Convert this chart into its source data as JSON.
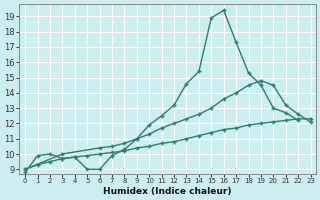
{
  "title": "",
  "xlabel": "Humidex (Indice chaleur)",
  "bg_color": "#cceef0",
  "grid_color": "#ffffff",
  "line_color": "#2e7d6e",
  "xlim": [
    -0.5,
    23.4
  ],
  "ylim": [
    8.7,
    19.8
  ],
  "xticks": [
    0,
    1,
    2,
    3,
    4,
    5,
    6,
    7,
    8,
    9,
    10,
    11,
    12,
    13,
    14,
    15,
    16,
    17,
    18,
    19,
    20,
    21,
    22,
    23
  ],
  "yticks": [
    9,
    10,
    11,
    12,
    13,
    14,
    15,
    16,
    17,
    18,
    19
  ],
  "curve1_x": [
    0,
    1,
    2,
    3,
    4,
    5,
    6,
    7,
    8,
    9,
    10,
    11,
    12,
    13,
    14,
    15,
    16,
    17,
    18,
    19,
    20,
    21,
    22
  ],
  "curve1_y": [
    8.8,
    9.9,
    10.0,
    9.7,
    9.8,
    9.0,
    9.0,
    9.9,
    10.3,
    11.0,
    11.9,
    12.5,
    13.2,
    14.6,
    15.4,
    18.9,
    19.4,
    17.3,
    15.3,
    14.5,
    13.0,
    12.7,
    12.2
  ],
  "curve2_x": [
    0,
    3,
    6,
    7,
    8,
    9,
    10,
    11,
    12,
    13,
    14,
    15,
    16,
    17,
    18,
    19,
    20,
    21,
    22,
    23
  ],
  "curve2_y": [
    9.0,
    10.0,
    10.4,
    10.5,
    10.7,
    11.0,
    11.3,
    11.7,
    12.0,
    12.3,
    12.6,
    13.0,
    13.6,
    14.0,
    14.5,
    14.8,
    14.5,
    13.2,
    12.6,
    12.1
  ],
  "curve3_x": [
    0,
    1,
    2,
    3,
    4,
    5,
    6,
    7,
    8,
    9,
    10,
    11,
    12,
    13,
    14,
    15,
    16,
    17,
    18,
    19,
    20,
    21,
    22,
    23
  ],
  "curve3_y": [
    9.0,
    9.3,
    9.5,
    9.7,
    9.8,
    9.9,
    10.0,
    10.1,
    10.2,
    10.4,
    10.5,
    10.7,
    10.8,
    11.0,
    11.2,
    11.4,
    11.6,
    11.7,
    11.9,
    12.0,
    12.1,
    12.2,
    12.3,
    12.3
  ]
}
